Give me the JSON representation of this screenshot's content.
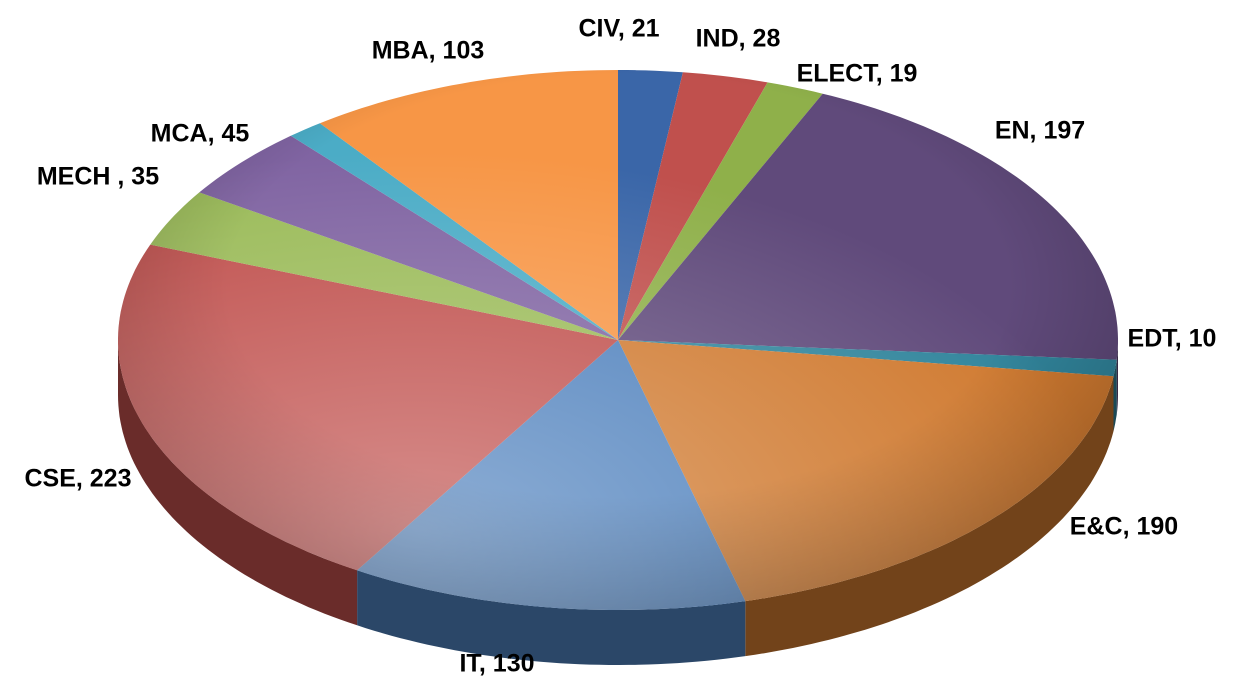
{
  "chart_data": {
    "type": "pie",
    "values": [
      21,
      28,
      19,
      197,
      10,
      190,
      130,
      223,
      35,
      45,
      12,
      103
    ],
    "value_labels": [
      "CIV, 21",
      "IND, 28",
      "ELECT, 19",
      "EN, 197",
      "EDT, 10",
      "E&C, 190",
      "IT, 130",
      "CSE, 223",
      "MECH , 35",
      "MCA, 45",
      null,
      "MBA, 103"
    ],
    "colors": [
      "#3a66a8",
      "#c0504d",
      "#8fb04a",
      "#604a7b",
      "#31859c",
      "#d07a30",
      "#4f81bd",
      "#c0504d",
      "#9bbb59",
      "#8064a2",
      "#4bacc6",
      "#f79646"
    ]
  }
}
